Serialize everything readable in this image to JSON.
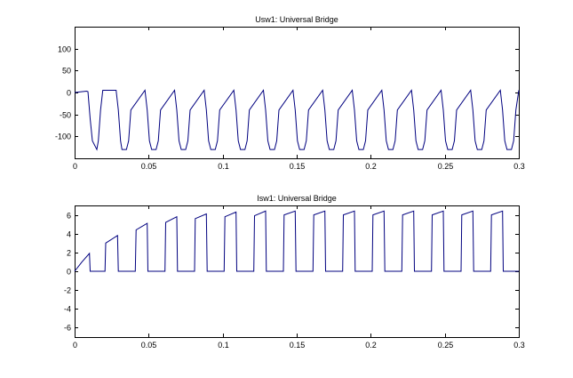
{
  "chart_data": [
    {
      "type": "line",
      "title": "Usw1: Universal Bridge",
      "xlabel": "",
      "ylabel": "",
      "xlim": [
        0,
        0.3
      ],
      "ylim": [
        -150,
        150
      ],
      "xticks": [
        0,
        0.05,
        0.1,
        0.15,
        0.2,
        0.25,
        0.3
      ],
      "xtick_labels": [
        "0",
        "0.05",
        "0.1",
        "0.15",
        "0.2",
        "0.25",
        "0.3"
      ],
      "yticks": [
        -100,
        -50,
        0,
        50,
        100
      ],
      "ytick_labels": [
        "-100",
        "-50",
        "0",
        "50",
        "100"
      ],
      "grid": false,
      "color": "#00007f",
      "series": [
        {
          "x": [
            0,
            0.008,
            0.009,
            0.0105,
            0.012,
            0.015,
            0.016,
            0.0175,
            0.019,
            0.028,
            0.0295,
            0.031,
            0.032,
            0.035,
            0.0365,
            0.038,
            0.0475,
            0.049,
            0.0505,
            0.052,
            0.055,
            0.0565,
            0.058,
            0.0675,
            0.069,
            0.0705,
            0.072,
            0.075,
            0.0765,
            0.078,
            0.0875,
            0.089,
            0.0905,
            0.092,
            0.095,
            0.0965,
            0.098,
            0.1075,
            0.109,
            0.1105,
            0.112,
            0.115,
            0.1165,
            0.118,
            0.1275,
            0.129,
            0.1305,
            0.132,
            0.135,
            0.1365,
            0.138,
            0.1475,
            0.149,
            0.1505,
            0.152,
            0.155,
            0.1565,
            0.158,
            0.1675,
            0.169,
            0.1705,
            0.172,
            0.175,
            0.1765,
            0.178,
            0.1875,
            0.189,
            0.1905,
            0.192,
            0.195,
            0.1965,
            0.198,
            0.2075,
            0.209,
            0.2105,
            0.212,
            0.215,
            0.2165,
            0.218,
            0.2275,
            0.229,
            0.2305,
            0.232,
            0.235,
            0.2365,
            0.238,
            0.2475,
            0.249,
            0.2505,
            0.252,
            0.255,
            0.2565,
            0.258,
            0.2675,
            0.269,
            0.2705,
            0.272,
            0.275,
            0.2765,
            0.278,
            0.2875,
            0.289,
            0.2905,
            0.292,
            0.295,
            0.2965,
            0.298,
            0.3
          ],
          "y": [
            0,
            3,
            2,
            -60,
            -110,
            -130,
            -110,
            -40,
            5,
            5,
            -40,
            -110,
            -130,
            -130,
            -110,
            -40,
            5,
            -40,
            -110,
            -130,
            -130,
            -110,
            -40,
            5,
            -40,
            -110,
            -130,
            -130,
            -110,
            -40,
            5,
            -40,
            -110,
            -130,
            -130,
            -110,
            -40,
            5,
            -40,
            -110,
            -130,
            -130,
            -110,
            -40,
            5,
            -40,
            -110,
            -130,
            -130,
            -110,
            -40,
            5,
            -40,
            -110,
            -130,
            -130,
            -110,
            -40,
            5,
            -40,
            -110,
            -130,
            -130,
            -110,
            -40,
            5,
            -40,
            -110,
            -130,
            -130,
            -110,
            -40,
            5,
            -40,
            -110,
            -130,
            -130,
            -110,
            -40,
            5,
            -40,
            -110,
            -130,
            -130,
            -110,
            -40,
            5,
            -40,
            -110,
            -130,
            -130,
            -110,
            -40,
            5,
            -40,
            -110,
            -130,
            -130,
            -110,
            -40,
            5,
            -40,
            -110,
            -130,
            -130,
            -110,
            -40,
            5
          ]
        }
      ]
    },
    {
      "type": "line",
      "title": "Isw1: Universal Bridge",
      "xlabel": "",
      "ylabel": "",
      "xlim": [
        0,
        0.3
      ],
      "ylim": [
        -7,
        7
      ],
      "xticks": [
        0,
        0.05,
        0.1,
        0.15,
        0.2,
        0.25,
        0.3
      ],
      "xtick_labels": [
        "0",
        "0.05",
        "0.1",
        "0.15",
        "0.2",
        "0.25",
        "0.3"
      ],
      "yticks": [
        -6,
        -4,
        -2,
        0,
        2,
        4,
        6
      ],
      "ytick_labels": [
        "-6",
        "-4",
        "-2",
        "0",
        "2",
        "4",
        "6"
      ],
      "grid": false,
      "color": "#00007f",
      "series": [
        {
          "x": [
            0,
            0.005,
            0.01,
            0.0105,
            0.0205,
            0.021,
            0.029,
            0.0295,
            0.041,
            0.0415,
            0.049,
            0.0495,
            0.061,
            0.0615,
            0.069,
            0.0695,
            0.081,
            0.0815,
            0.089,
            0.0895,
            0.101,
            0.1015,
            0.109,
            0.1095,
            0.121,
            0.1215,
            0.129,
            0.1295,
            0.141,
            0.1415,
            0.149,
            0.1495,
            0.161,
            0.1615,
            0.169,
            0.1695,
            0.181,
            0.1815,
            0.189,
            0.1895,
            0.201,
            0.2015,
            0.209,
            0.2095,
            0.221,
            0.2215,
            0.229,
            0.2295,
            0.241,
            0.2415,
            0.249,
            0.2495,
            0.261,
            0.2615,
            0.269,
            0.2695,
            0.281,
            0.2815,
            0.289,
            0.2895,
            0.3
          ],
          "y": [
            0,
            1.0,
            1.9,
            0,
            0,
            3.0,
            3.8,
            0,
            0,
            4.4,
            5.1,
            0,
            0,
            5.2,
            5.8,
            0,
            0,
            5.6,
            6.1,
            0,
            0,
            5.8,
            6.3,
            0,
            0,
            5.9,
            6.4,
            0,
            0,
            6.0,
            6.4,
            0,
            0,
            6.0,
            6.4,
            0,
            0,
            6.0,
            6.4,
            0,
            0,
            6.0,
            6.4,
            0,
            0,
            6.0,
            6.4,
            0,
            0,
            6.0,
            6.4,
            0,
            0,
            6.0,
            6.4,
            0,
            0,
            6.0,
            6.4,
            0,
            0
          ]
        }
      ]
    }
  ]
}
